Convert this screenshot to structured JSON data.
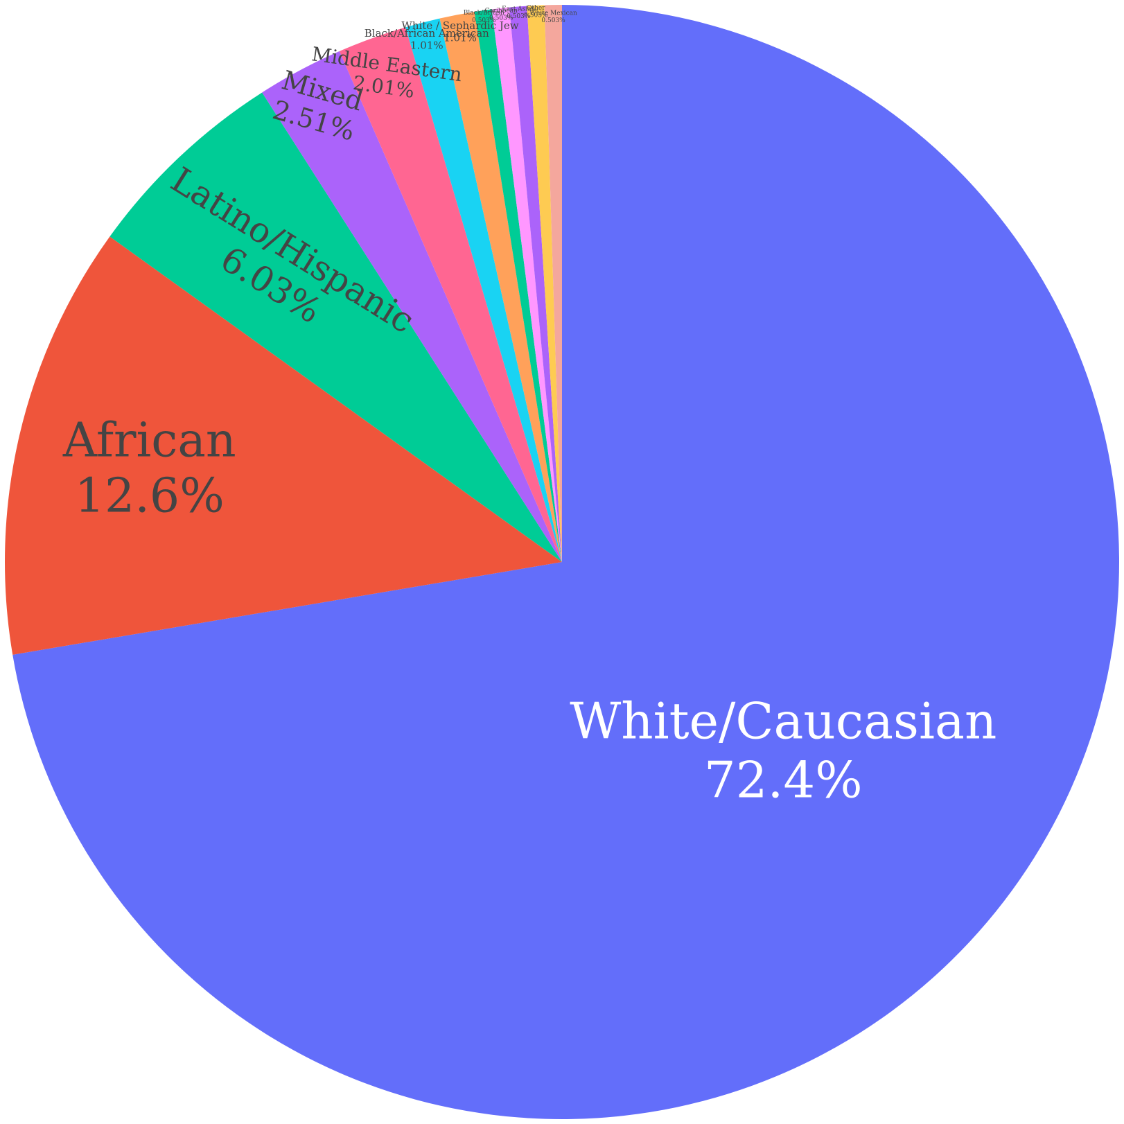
{
  "chart_data": {
    "type": "pie",
    "title": "",
    "sort": "descending",
    "direction": "clockwise",
    "start": "12 o'clock",
    "slices": [
      {
        "label": "White/Caucasian",
        "value": 72.4,
        "value_label": "72.4%",
        "color": "#636efa",
        "text_color": "#ffffff"
      },
      {
        "label": "African",
        "value": 12.6,
        "value_label": "12.6%",
        "color": "#ef553b",
        "text_color": "#444444"
      },
      {
        "label": "Latino/Hispanic",
        "value": 6.03,
        "value_label": "6.03%",
        "color": "#00cc96",
        "text_color": "#444444"
      },
      {
        "label": "Mixed",
        "value": 2.51,
        "value_label": "2.51%",
        "color": "#ab63fa",
        "text_color": "#444444"
      },
      {
        "label": "Middle Eastern",
        "value": 2.01,
        "value_label": "2.01%",
        "color": "#ff6692",
        "text_color": "#444444"
      },
      {
        "label": "Black/African American",
        "value": 1.01,
        "value_label": "1.01%",
        "color": "#19d3f3",
        "text_color": "#444444"
      },
      {
        "label": "White / Sephardic Jew",
        "value": 1.01,
        "value_label": "1.01%",
        "color": "#ffa15a",
        "text_color": "#444444"
      },
      {
        "label": "Black/British",
        "value": 0.503,
        "value_label": "0.503%",
        "color": "#00cc96",
        "text_color": "#444444"
      },
      {
        "label": "Caribbean",
        "value": 0.503,
        "value_label": "0.503%",
        "color": "#ff97ff",
        "text_color": "#444444"
      },
      {
        "label": "East Asian",
        "value": 0.503,
        "value_label": "0.503%",
        "color": "#ab63fa",
        "text_color": "#444444"
      },
      {
        "label": "Other",
        "value": 0.503,
        "value_label": "0.503%",
        "color": "#fecb52",
        "text_color": "#444444"
      },
      {
        "label": "White Mexican",
        "value": 0.503,
        "value_label": "0.503%",
        "color": "#f4a79d",
        "text_color": "#444444"
      }
    ]
  }
}
